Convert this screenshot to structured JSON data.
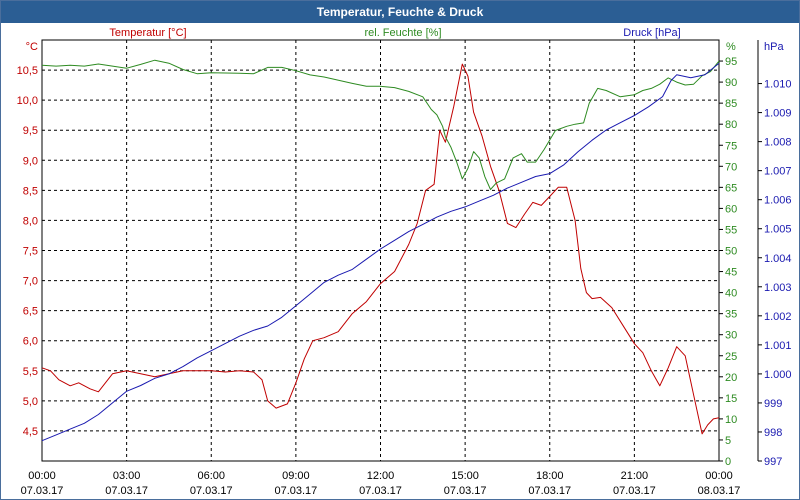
{
  "window": {
    "title": "Temperatur, Feuchte & Druck"
  },
  "chart_data": {
    "type": "line",
    "title": "Temperatur, Feuchte & Druck",
    "x_range_hours": [
      0,
      24
    ],
    "x_ticks": [
      {
        "time": "00:00",
        "date": "07.03.17"
      },
      {
        "time": "03:00",
        "date": "07.03.17"
      },
      {
        "time": "06:00",
        "date": "07.03.17"
      },
      {
        "time": "09:00",
        "date": "07.03.17"
      },
      {
        "time": "12:00",
        "date": "07.03.17"
      },
      {
        "time": "15:00",
        "date": "07.03.17"
      },
      {
        "time": "18:00",
        "date": "07.03.17"
      },
      {
        "time": "21:00",
        "date": "07.03.17"
      },
      {
        "time": "00:00",
        "date": "08.03.17"
      }
    ],
    "axes": {
      "temperature": {
        "unit": "°C",
        "ylim": [
          4.0,
          11.0
        ],
        "ticks": [
          "10,5",
          "10,0",
          "9,5",
          "9,0",
          "8,5",
          "8,0",
          "7,5",
          "7,0",
          "6,5",
          "6,0",
          "5,5",
          "5,0",
          "4,5"
        ],
        "tick_values": [
          10.5,
          10.0,
          9.5,
          9.0,
          8.5,
          8.0,
          7.5,
          7.0,
          6.5,
          6.0,
          5.5,
          5.0,
          4.5
        ],
        "color": "#c00000"
      },
      "humidity": {
        "unit": "%",
        "ylim": [
          0,
          100
        ],
        "ticks": [
          "95",
          "90",
          "85",
          "80",
          "75",
          "70",
          "65",
          "60",
          "55",
          "50",
          "45",
          "40",
          "35",
          "30",
          "25",
          "20",
          "15",
          "10",
          "5",
          "0"
        ],
        "tick_values": [
          95,
          90,
          85,
          80,
          75,
          70,
          65,
          60,
          55,
          50,
          45,
          40,
          35,
          30,
          25,
          20,
          15,
          10,
          5,
          0
        ],
        "color": "#2e8b22"
      },
      "pressure": {
        "unit": "hPa",
        "ylim": [
          997,
          1011.5
        ],
        "ticks": [
          "1.010",
          "1.009",
          "1.008",
          "1.007",
          "1.006",
          "1.005",
          "1.004",
          "1.003",
          "1.002",
          "1.001",
          "1.000",
          "999",
          "998",
          "997"
        ],
        "tick_values": [
          1010,
          1009,
          1008,
          1007,
          1006,
          1005,
          1004,
          1003,
          1002,
          1001,
          1000,
          999,
          998,
          997
        ],
        "color": "#1a1ab0"
      }
    },
    "legend": {
      "temperature": "Temperatur [°C]",
      "humidity": "rel. Feuchte [%]",
      "pressure": "Druck [hPa]"
    },
    "series": [
      {
        "name": "Temperatur [°C]",
        "axis": "temperature",
        "color": "#c00000",
        "points": [
          [
            0,
            5.55
          ],
          [
            0.3,
            5.5
          ],
          [
            0.6,
            5.35
          ],
          [
            1.0,
            5.25
          ],
          [
            1.3,
            5.3
          ],
          [
            1.7,
            5.2
          ],
          [
            2.0,
            5.15
          ],
          [
            2.5,
            5.45
          ],
          [
            3.0,
            5.5
          ],
          [
            3.5,
            5.45
          ],
          [
            4.0,
            5.4
          ],
          [
            4.5,
            5.45
          ],
          [
            5.0,
            5.5
          ],
          [
            5.5,
            5.5
          ],
          [
            6.0,
            5.5
          ],
          [
            6.5,
            5.48
          ],
          [
            7.0,
            5.5
          ],
          [
            7.5,
            5.48
          ],
          [
            7.8,
            5.35
          ],
          [
            8.0,
            5.0
          ],
          [
            8.3,
            4.88
          ],
          [
            8.7,
            4.95
          ],
          [
            9.0,
            5.3
          ],
          [
            9.3,
            5.7
          ],
          [
            9.6,
            6.0
          ],
          [
            10.0,
            6.05
          ],
          [
            10.5,
            6.15
          ],
          [
            11.0,
            6.45
          ],
          [
            11.5,
            6.65
          ],
          [
            12.0,
            6.95
          ],
          [
            12.5,
            7.15
          ],
          [
            13.0,
            7.6
          ],
          [
            13.3,
            7.95
          ],
          [
            13.6,
            8.5
          ],
          [
            13.9,
            8.6
          ],
          [
            14.1,
            9.5
          ],
          [
            14.3,
            9.3
          ],
          [
            14.6,
            9.9
          ],
          [
            14.9,
            10.6
          ],
          [
            15.1,
            10.4
          ],
          [
            15.3,
            9.8
          ],
          [
            15.6,
            9.4
          ],
          [
            15.9,
            8.9
          ],
          [
            16.2,
            8.5
          ],
          [
            16.5,
            7.95
          ],
          [
            16.8,
            7.88
          ],
          [
            17.1,
            8.1
          ],
          [
            17.4,
            8.3
          ],
          [
            17.7,
            8.25
          ],
          [
            18.0,
            8.4
          ],
          [
            18.3,
            8.55
          ],
          [
            18.6,
            8.55
          ],
          [
            18.9,
            8.0
          ],
          [
            19.1,
            7.2
          ],
          [
            19.3,
            6.8
          ],
          [
            19.5,
            6.7
          ],
          [
            19.8,
            6.72
          ],
          [
            20.2,
            6.55
          ],
          [
            20.6,
            6.25
          ],
          [
            21.0,
            5.95
          ],
          [
            21.3,
            5.8
          ],
          [
            21.6,
            5.5
          ],
          [
            21.9,
            5.25
          ],
          [
            22.2,
            5.55
          ],
          [
            22.5,
            5.9
          ],
          [
            22.8,
            5.75
          ],
          [
            23.1,
            5.1
          ],
          [
            23.4,
            4.45
          ],
          [
            23.6,
            4.6
          ],
          [
            23.8,
            4.7
          ],
          [
            24.0,
            4.72
          ]
        ]
      },
      {
        "name": "rel. Feuchte [%]",
        "axis": "humidity",
        "color": "#2e8b22",
        "points": [
          [
            0,
            94
          ],
          [
            0.5,
            93.8
          ],
          [
            1.0,
            94
          ],
          [
            1.5,
            93.8
          ],
          [
            2.0,
            94.3
          ],
          [
            2.5,
            93.8
          ],
          [
            3.0,
            93.3
          ],
          [
            3.5,
            94.2
          ],
          [
            4.0,
            95.2
          ],
          [
            4.5,
            94.5
          ],
          [
            5.0,
            93
          ],
          [
            5.5,
            92
          ],
          [
            6.0,
            92.2
          ],
          [
            7.0,
            92.1
          ],
          [
            7.5,
            92
          ],
          [
            8.0,
            93.5
          ],
          [
            8.5,
            93.5
          ],
          [
            9.0,
            92.7
          ],
          [
            9.5,
            91.7
          ],
          [
            10.0,
            91.2
          ],
          [
            11.0,
            89.7
          ],
          [
            11.5,
            89
          ],
          [
            12.0,
            89
          ],
          [
            12.5,
            88.7
          ],
          [
            13.0,
            87.8
          ],
          [
            13.5,
            86.5
          ],
          [
            13.8,
            83.5
          ],
          [
            14.0,
            82.2
          ],
          [
            14.2,
            79.5
          ],
          [
            14.3,
            77
          ],
          [
            14.5,
            74.5
          ],
          [
            14.7,
            71
          ],
          [
            14.9,
            67
          ],
          [
            15.1,
            69.5
          ],
          [
            15.3,
            73.5
          ],
          [
            15.5,
            72
          ],
          [
            15.7,
            67.5
          ],
          [
            15.9,
            64.5
          ],
          [
            16.1,
            66
          ],
          [
            16.4,
            67
          ],
          [
            16.7,
            72
          ],
          [
            17.0,
            73
          ],
          [
            17.2,
            71
          ],
          [
            17.5,
            71
          ],
          [
            17.8,
            74
          ],
          [
            18.2,
            78.5
          ],
          [
            18.6,
            79.5
          ],
          [
            18.9,
            80
          ],
          [
            19.2,
            80.3
          ],
          [
            19.4,
            85
          ],
          [
            19.7,
            88.5
          ],
          [
            20.0,
            88
          ],
          [
            20.5,
            86.5
          ],
          [
            21.0,
            87
          ],
          [
            21.3,
            88
          ],
          [
            21.6,
            88.5
          ],
          [
            21.9,
            89.5
          ],
          [
            22.2,
            91
          ],
          [
            22.5,
            90
          ],
          [
            22.8,
            89.3
          ],
          [
            23.1,
            89.5
          ],
          [
            23.4,
            91.5
          ],
          [
            23.7,
            92.5
          ],
          [
            24.0,
            95
          ]
        ]
      },
      {
        "name": "Druck [hPa]",
        "axis": "pressure",
        "color": "#1a1ab0",
        "points": [
          [
            0,
            997.7
          ],
          [
            0.5,
            997.9
          ],
          [
            1.0,
            998.1
          ],
          [
            1.5,
            998.3
          ],
          [
            2.0,
            998.6
          ],
          [
            2.5,
            999.0
          ],
          [
            3.0,
            999.4
          ],
          [
            3.5,
            999.6
          ],
          [
            4.0,
            999.85
          ],
          [
            4.5,
            1000.0
          ],
          [
            5.0,
            1000.25
          ],
          [
            5.5,
            1000.55
          ],
          [
            6.0,
            1000.8
          ],
          [
            6.5,
            1001.05
          ],
          [
            7.0,
            1001.3
          ],
          [
            7.5,
            1001.5
          ],
          [
            8.0,
            1001.65
          ],
          [
            8.5,
            1001.95
          ],
          [
            9.0,
            1002.35
          ],
          [
            9.5,
            1002.75
          ],
          [
            10.0,
            1003.15
          ],
          [
            10.5,
            1003.4
          ],
          [
            11.0,
            1003.6
          ],
          [
            11.5,
            1003.95
          ],
          [
            12.0,
            1004.3
          ],
          [
            12.5,
            1004.6
          ],
          [
            13.0,
            1004.9
          ],
          [
            13.5,
            1005.15
          ],
          [
            14.0,
            1005.4
          ],
          [
            14.5,
            1005.6
          ],
          [
            15.0,
            1005.75
          ],
          [
            15.5,
            1005.95
          ],
          [
            16.0,
            1006.15
          ],
          [
            16.5,
            1006.4
          ],
          [
            17.0,
            1006.6
          ],
          [
            17.5,
            1006.8
          ],
          [
            18.0,
            1006.9
          ],
          [
            18.5,
            1007.2
          ],
          [
            19.0,
            1007.65
          ],
          [
            19.5,
            1008.05
          ],
          [
            20.0,
            1008.4
          ],
          [
            20.5,
            1008.65
          ],
          [
            21.0,
            1008.9
          ],
          [
            21.5,
            1009.2
          ],
          [
            22.0,
            1009.55
          ],
          [
            22.3,
            1010.1
          ],
          [
            22.5,
            1010.3
          ],
          [
            23.0,
            1010.2
          ],
          [
            23.5,
            1010.3
          ],
          [
            24.0,
            1010.7
          ]
        ]
      }
    ]
  }
}
